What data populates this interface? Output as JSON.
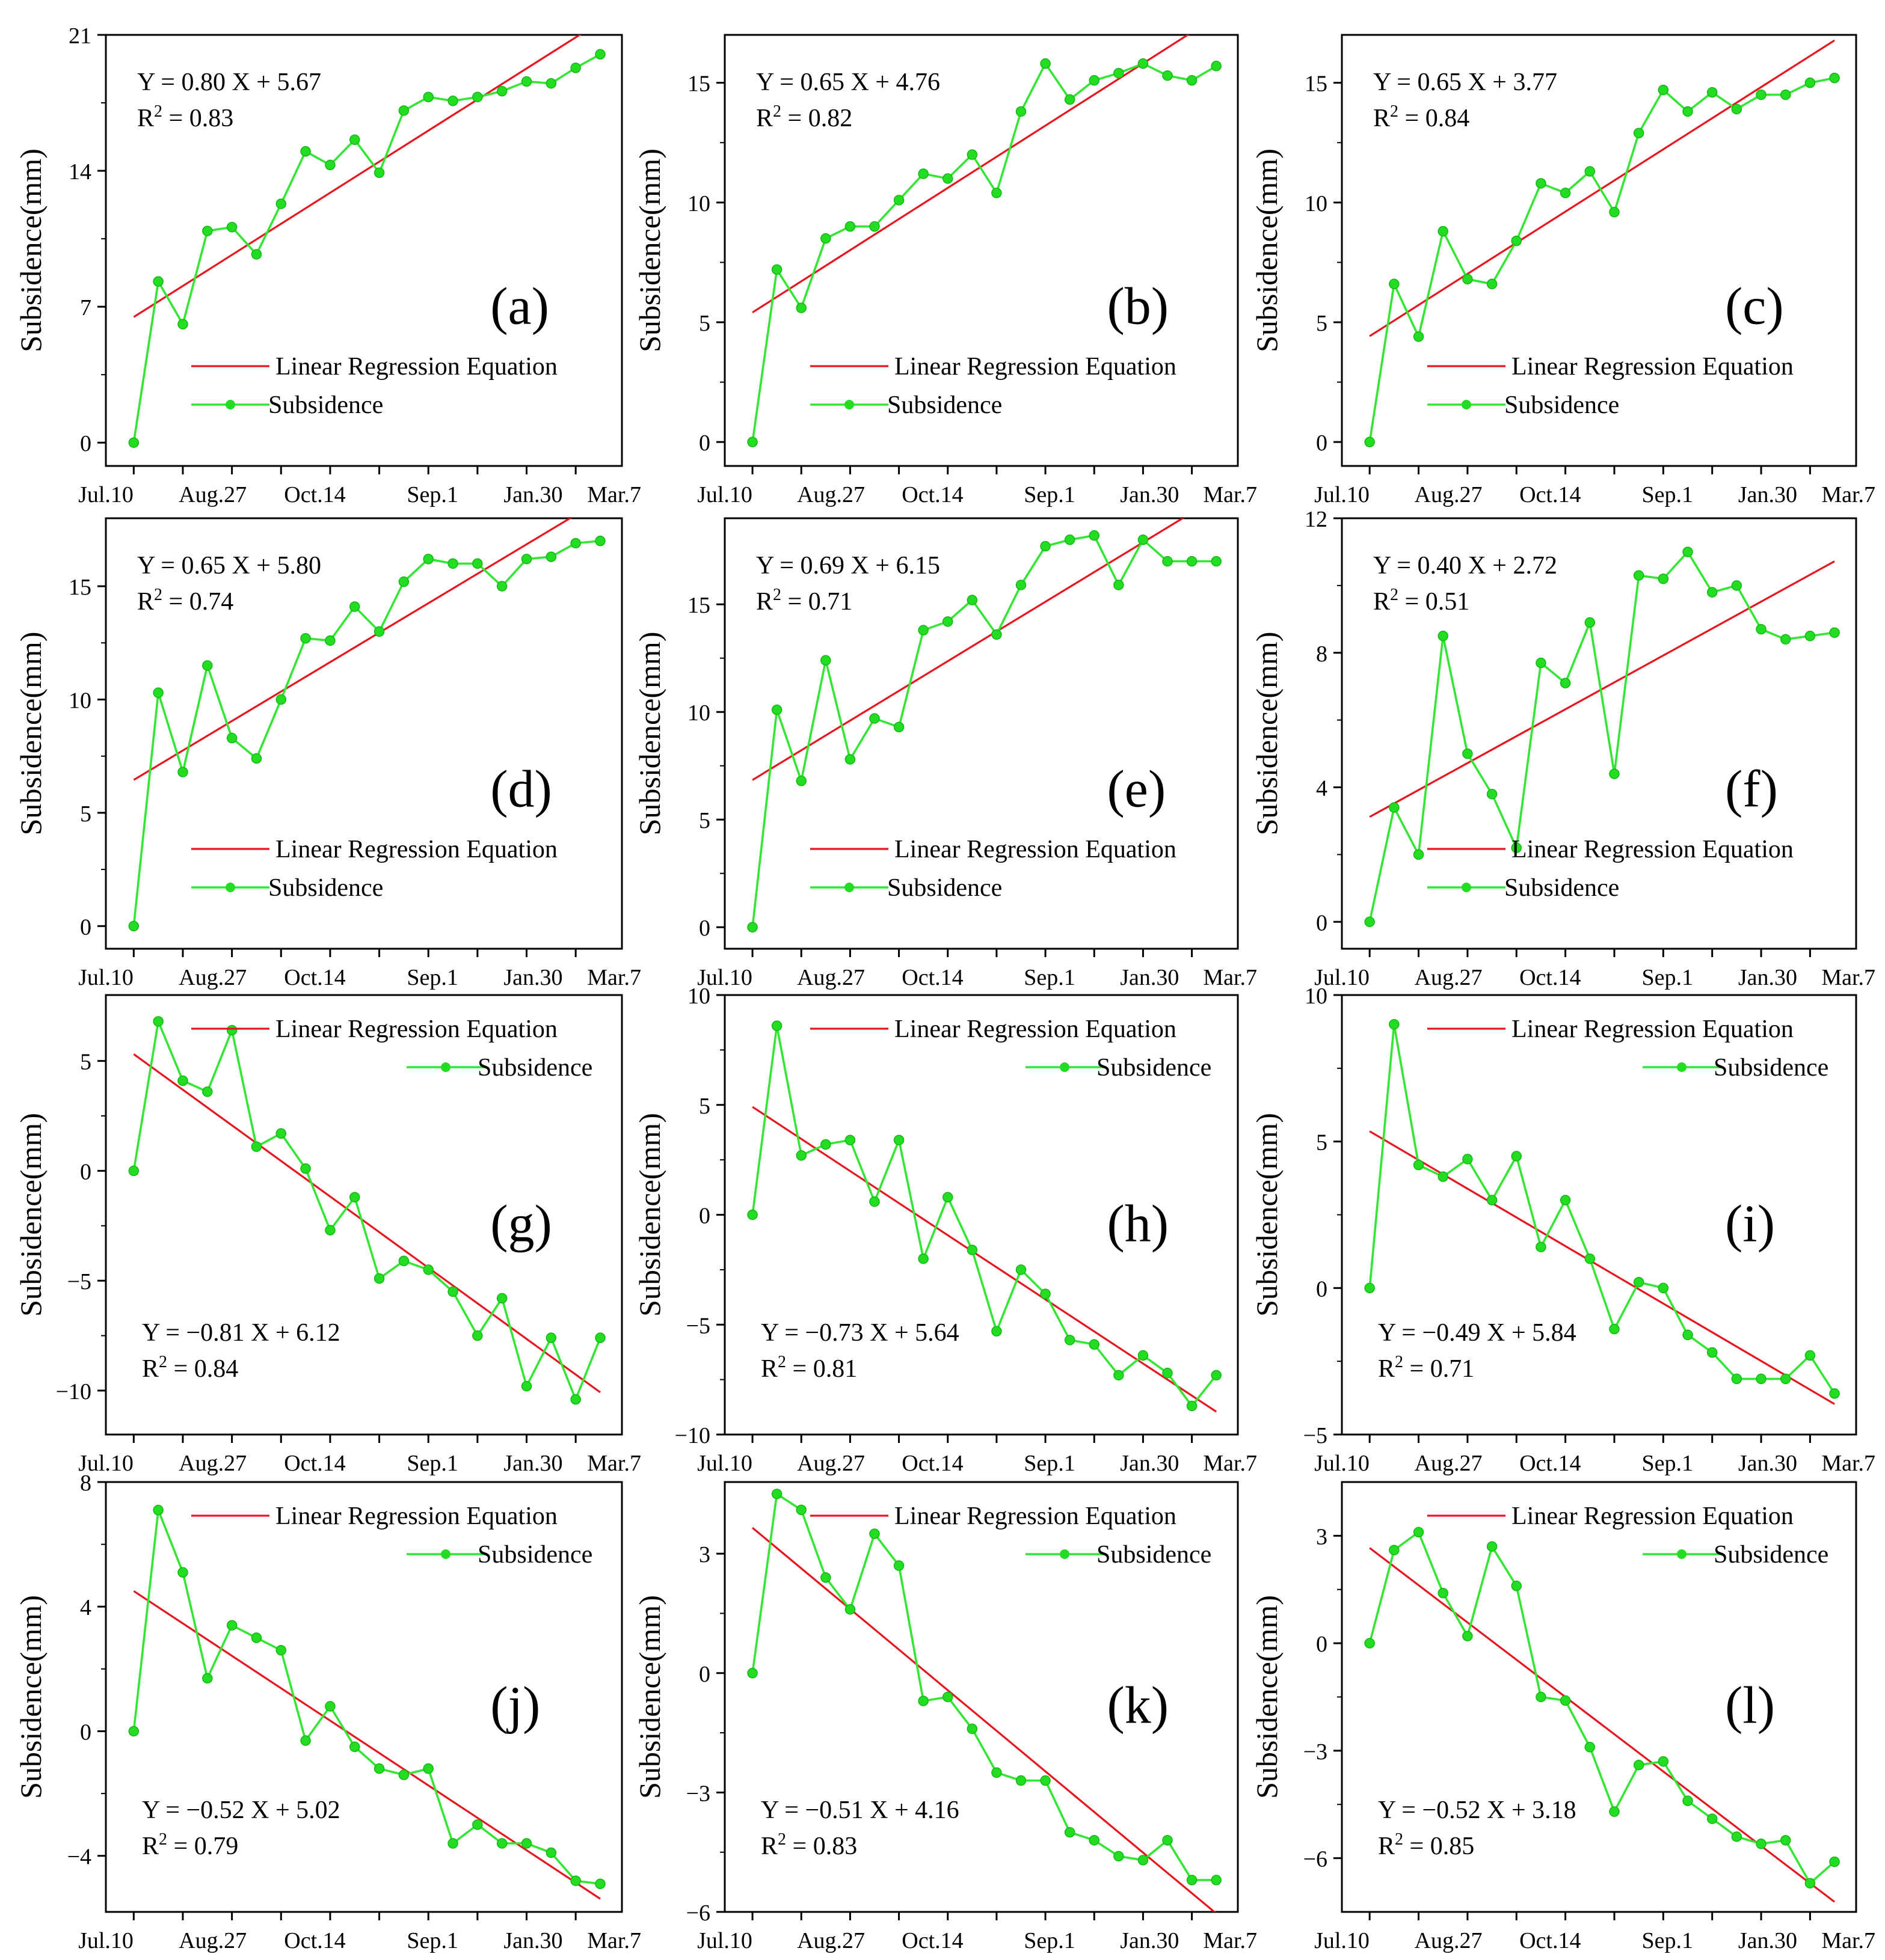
{
  "colors": {
    "regression": "#e8141e",
    "subsidence": "#33e633",
    "marker": "#22dd22",
    "axis": "#000000"
  },
  "legend_labels": {
    "regression": "Linear Regression Equation",
    "subsidence": "Subsidence"
  },
  "chart_data": [
    {
      "id": "a",
      "type": "line",
      "panel_label": "(a)",
      "ylabel": "Subsidence(mm)",
      "xticks": [
        "Jul.10",
        "Aug.27",
        "Oct.14",
        "Sep.1",
        "Jan.30",
        "Mar.7"
      ],
      "yticks": [
        0,
        7,
        14,
        21
      ],
      "ylim": [
        -1.2,
        21
      ],
      "equation": "Y = 0.80 X + 5.67",
      "r2_prefix": "R",
      "r2_exp": "2",
      "r2_value": " = 0.83",
      "slope": 0.8,
      "intercept": 5.67,
      "values": [
        0,
        8.3,
        6.1,
        10.9,
        11.1,
        9.7,
        12.3,
        15.0,
        14.3,
        15.6,
        13.9,
        17.1,
        17.8,
        17.6,
        17.8,
        18.1,
        18.6,
        18.5,
        19.3,
        20.0
      ],
      "equation_pos": "top-left",
      "legend_pos": "bottom-right",
      "panel_label_pos": "middle-right"
    },
    {
      "id": "b",
      "type": "line",
      "panel_label": "(b)",
      "ylabel": "Subsidence(mm)",
      "xticks": [
        "Jul.10",
        "Aug.27",
        "Oct.14",
        "Sep.1",
        "Jan.30",
        "Mar.7"
      ],
      "yticks": [
        0,
        5,
        10,
        15
      ],
      "ylim": [
        -1,
        17
      ],
      "equation": "Y = 0.65 X + 4.76",
      "r2_prefix": "R",
      "r2_exp": "2",
      "r2_value": " = 0.82",
      "slope": 0.65,
      "intercept": 4.76,
      "values": [
        0,
        7.2,
        5.6,
        8.5,
        9.0,
        9.0,
        10.1,
        11.2,
        11.0,
        12.0,
        10.4,
        13.8,
        15.8,
        14.3,
        15.1,
        15.4,
        15.8,
        15.3,
        15.1,
        15.7
      ],
      "equation_pos": "top-left",
      "legend_pos": "bottom-right",
      "panel_label_pos": "middle-right"
    },
    {
      "id": "c",
      "type": "line",
      "panel_label": "(c)",
      "ylabel": "Subsidence(mm)",
      "xticks": [
        "Jul.10",
        "Aug.27",
        "Oct.14",
        "Sep.1",
        "Jan.30",
        "Mar.7"
      ],
      "yticks": [
        0,
        5,
        10,
        15
      ],
      "ylim": [
        -1,
        17
      ],
      "equation": "Y = 0.65 X + 3.77",
      "r2_prefix": "R",
      "r2_exp": "2",
      "r2_value": " = 0.84",
      "slope": 0.65,
      "intercept": 3.77,
      "values": [
        0,
        6.6,
        4.4,
        8.8,
        6.8,
        6.6,
        8.4,
        10.8,
        10.4,
        11.3,
        9.6,
        12.9,
        14.7,
        13.8,
        14.6,
        13.9,
        14.5,
        14.5,
        15.0,
        15.2
      ],
      "equation_pos": "top-left",
      "legend_pos": "bottom-right",
      "panel_label_pos": "middle-right"
    },
    {
      "id": "d",
      "type": "line",
      "panel_label": "(d)",
      "ylabel": "Subsidence(mm)",
      "xticks": [
        "Jul.10",
        "Aug.27",
        "Oct.14",
        "Sep.1",
        "Jan.30",
        "Mar.7"
      ],
      "yticks": [
        0,
        5,
        10,
        15
      ],
      "ylim": [
        -1,
        18
      ],
      "equation": "Y = 0.65 X + 5.80",
      "r2_prefix": "R",
      "r2_exp": "2",
      "r2_value": " = 0.74",
      "slope": 0.65,
      "intercept": 5.8,
      "values": [
        0,
        10.3,
        6.8,
        11.5,
        8.3,
        7.4,
        10.0,
        12.7,
        12.6,
        14.1,
        13.0,
        15.2,
        16.2,
        16.0,
        16.0,
        15.0,
        16.2,
        16.3,
        16.9,
        17.0
      ],
      "equation_pos": "top-left",
      "legend_pos": "bottom-right",
      "panel_label_pos": "middle-right"
    },
    {
      "id": "e",
      "type": "line",
      "panel_label": "(e)",
      "ylabel": "Subsidence(mm)",
      "xticks": [
        "Jul.10",
        "Aug.27",
        "Oct.14",
        "Sep.1",
        "Jan.30",
        "Mar.7"
      ],
      "yticks": [
        0,
        5,
        10,
        15
      ],
      "ylim": [
        -1,
        19
      ],
      "equation": "Y = 0.69 X + 6.15",
      "r2_prefix": "R",
      "r2_exp": "2",
      "r2_value": " = 0.71",
      "slope": 0.69,
      "intercept": 6.15,
      "values": [
        0,
        10.1,
        6.8,
        12.4,
        7.8,
        9.7,
        9.3,
        13.8,
        14.2,
        15.2,
        13.6,
        15.9,
        17.7,
        18.0,
        18.2,
        15.9,
        18.0,
        17.0,
        17.0,
        17.0
      ],
      "equation_pos": "top-left",
      "legend_pos": "bottom-right",
      "panel_label_pos": "middle-right"
    },
    {
      "id": "f",
      "type": "line",
      "panel_label": "(f)",
      "ylabel": "Subsidence(mm)",
      "xticks": [
        "Jul.10",
        "Aug.27",
        "Oct.14",
        "Sep.1",
        "Jan.30",
        "Mar.7"
      ],
      "yticks": [
        0,
        4,
        8,
        12
      ],
      "ylim": [
        -0.8,
        12
      ],
      "equation": "Y = 0.40 X + 2.72",
      "r2_prefix": "R",
      "r2_exp": "2",
      "r2_value": " = 0.51",
      "slope": 0.4,
      "intercept": 2.72,
      "values": [
        0,
        3.4,
        2.0,
        8.5,
        5.0,
        3.8,
        2.2,
        7.7,
        7.1,
        8.9,
        4.4,
        10.3,
        10.2,
        11.0,
        9.8,
        10.0,
        8.7,
        8.4,
        8.5,
        8.6
      ],
      "equation_pos": "top-left",
      "legend_pos": "bottom-right",
      "panel_label_pos": "middle-right"
    },
    {
      "id": "g",
      "type": "line",
      "panel_label": "(g)",
      "ylabel": "Subsidence(mm)",
      "xticks": [
        "Jul.10",
        "Aug.27",
        "Oct.14",
        "Sep.1",
        "Jan.30",
        "Mar.7"
      ],
      "yticks": [
        -10,
        -5,
        0,
        5
      ],
      "ylim": [
        -12,
        8
      ],
      "equation": "Y = −0.81 X + 6.12",
      "r2_prefix": "R",
      "r2_exp": "2",
      "r2_value": " = 0.84",
      "slope": -0.81,
      "intercept": 6.12,
      "values": [
        0,
        6.8,
        4.1,
        3.6,
        6.4,
        1.1,
        1.7,
        0.1,
        -2.7,
        -1.2,
        -4.9,
        -4.1,
        -4.5,
        -5.5,
        -7.5,
        -5.8,
        -9.8,
        -7.6,
        -10.4,
        -7.6
      ],
      "equation_pos": "bottom-left",
      "legend_pos": "top-right",
      "panel_label_pos": "middle-right"
    },
    {
      "id": "h",
      "type": "line",
      "panel_label": "(h)",
      "ylabel": "Subsidence(mm)",
      "xticks": [
        "Jul.10",
        "Aug.27",
        "Oct.14",
        "Sep.1",
        "Jan.30",
        "Mar.7"
      ],
      "yticks": [
        -10,
        -5,
        0,
        5,
        10
      ],
      "ylim": [
        -10,
        10
      ],
      "equation": "Y = −0.73 X + 5.64",
      "r2_prefix": "R",
      "r2_exp": "2",
      "r2_value": " = 0.81",
      "slope": -0.73,
      "intercept": 5.64,
      "values": [
        0,
        8.6,
        2.7,
        3.2,
        3.4,
        0.6,
        3.4,
        -2.0,
        0.8,
        -1.6,
        -5.3,
        -2.5,
        -3.6,
        -5.7,
        -5.9,
        -7.3,
        -6.4,
        -7.2,
        -8.7,
        -7.3
      ],
      "equation_pos": "bottom-left",
      "legend_pos": "top-right",
      "panel_label_pos": "middle-right"
    },
    {
      "id": "i",
      "type": "line",
      "panel_label": "(i)",
      "ylabel": "Subsidence(mm)",
      "xticks": [
        "Jul.10",
        "Aug.27",
        "Oct.14",
        "Sep.1",
        "Jan.30",
        "Mar.7"
      ],
      "yticks": [
        -5,
        0,
        5,
        10
      ],
      "ylim": [
        -5,
        10
      ],
      "equation": "Y = −0.49 X + 5.84",
      "r2_prefix": "R",
      "r2_exp": "2",
      "r2_value": " = 0.71",
      "slope": -0.49,
      "intercept": 5.84,
      "values": [
        0,
        9.0,
        4.2,
        3.8,
        4.4,
        3.0,
        4.5,
        1.4,
        3.0,
        1.0,
        -1.4,
        0.2,
        0.0,
        -1.6,
        -2.2,
        -3.1,
        -3.1,
        -3.1,
        -2.3,
        -3.6
      ],
      "equation_pos": "bottom-left",
      "legend_pos": "top-right",
      "panel_label_pos": "middle-right"
    },
    {
      "id": "j",
      "type": "line",
      "panel_label": "(j)",
      "ylabel": "Subsidence(mm)",
      "xticks": [
        "Jul.10",
        "Aug.27",
        "Oct.14",
        "Sep.1",
        "Jan.30",
        "Mar.7"
      ],
      "yticks": [
        -4,
        0,
        4,
        8
      ],
      "ylim": [
        -5.8,
        8
      ],
      "equation": "Y = −0.52 X + 5.02",
      "r2_prefix": "R",
      "r2_exp": "2",
      "r2_value": " = 0.79",
      "slope": -0.52,
      "intercept": 5.02,
      "values": [
        0,
        7.1,
        5.1,
        1.7,
        3.4,
        3.0,
        2.6,
        -0.3,
        0.8,
        -0.5,
        -1.2,
        -1.4,
        -1.2,
        -3.6,
        -3.0,
        -3.6,
        -3.6,
        -3.9,
        -4.8,
        -4.9
      ],
      "equation_pos": "bottom-left",
      "legend_pos": "top-right",
      "panel_label_pos": "middle-right"
    },
    {
      "id": "k",
      "type": "line",
      "panel_label": "(k)",
      "ylabel": "Subsidence(mm)",
      "xticks": [
        "Jul.10",
        "Aug.27",
        "Oct.14",
        "Sep.1",
        "Jan.30",
        "Mar.7"
      ],
      "yticks": [
        -6,
        -3,
        0,
        3
      ],
      "ylim": [
        -6,
        4.8
      ],
      "equation": "Y = −0.51 X + 4.16",
      "r2_prefix": "R",
      "r2_exp": "2",
      "r2_value": " = 0.83",
      "slope": -0.51,
      "intercept": 4.16,
      "values": [
        0,
        4.5,
        4.1,
        2.4,
        1.6,
        3.5,
        2.7,
        -0.7,
        -0.6,
        -1.4,
        -2.5,
        -2.7,
        -2.7,
        -4.0,
        -4.2,
        -4.6,
        -4.7,
        -4.2,
        -5.2,
        -5.2
      ],
      "equation_pos": "bottom-left",
      "legend_pos": "top-right",
      "panel_label_pos": "middle-right"
    },
    {
      "id": "l",
      "type": "line",
      "panel_label": "(l)",
      "ylabel": "Subsidence(mm)",
      "xticks": [
        "Jul.10",
        "Aug.27",
        "Oct.14",
        "Sep.1",
        "Jan.30",
        "Mar.7"
      ],
      "yticks": [
        -6,
        -3,
        0,
        3
      ],
      "ylim": [
        -7.5,
        4.5
      ],
      "equation": "Y = −0.52 X + 3.18",
      "r2_prefix": "R",
      "r2_exp": "2",
      "r2_value": " = 0.85",
      "slope": -0.52,
      "intercept": 3.18,
      "values": [
        0,
        2.6,
        3.1,
        1.4,
        0.2,
        2.7,
        1.6,
        -1.5,
        -1.6,
        -2.9,
        -4.7,
        -3.4,
        -3.3,
        -4.4,
        -4.9,
        -5.4,
        -5.6,
        -5.5,
        -6.7,
        -6.1
      ],
      "equation_pos": "bottom-left",
      "legend_pos": "top-right",
      "panel_label_pos": "middle-right"
    }
  ]
}
